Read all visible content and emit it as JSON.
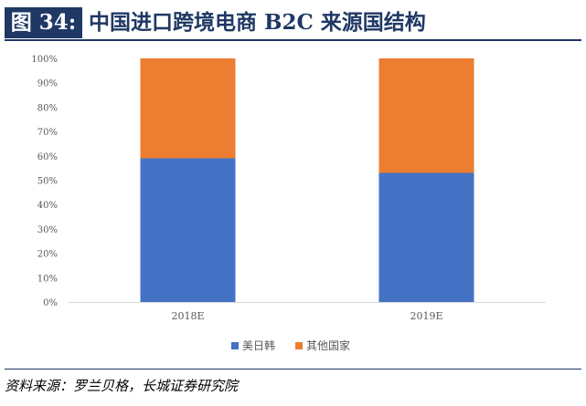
{
  "header": {
    "figure_label": "图 34:",
    "title": "中国进口跨境电商 B2C 来源国结构"
  },
  "chart_data": {
    "type": "bar",
    "stacked": true,
    "percent": true,
    "categories": [
      "2018E",
      "2019E"
    ],
    "series": [
      {
        "name": "美日韩",
        "values": [
          59,
          53
        ],
        "color": "#4472c4"
      },
      {
        "name": "其他国家",
        "values": [
          41,
          47
        ],
        "color": "#ed7d31"
      }
    ],
    "y_ticks": [
      "0%",
      "10%",
      "20%",
      "30%",
      "40%",
      "50%",
      "60%",
      "70%",
      "80%",
      "90%",
      "100%"
    ],
    "ylim": [
      0,
      100
    ],
    "grid": false,
    "legend_position": "bottom"
  },
  "footer": {
    "source": "资料来源：罗兰贝格，长城证券研究院"
  }
}
